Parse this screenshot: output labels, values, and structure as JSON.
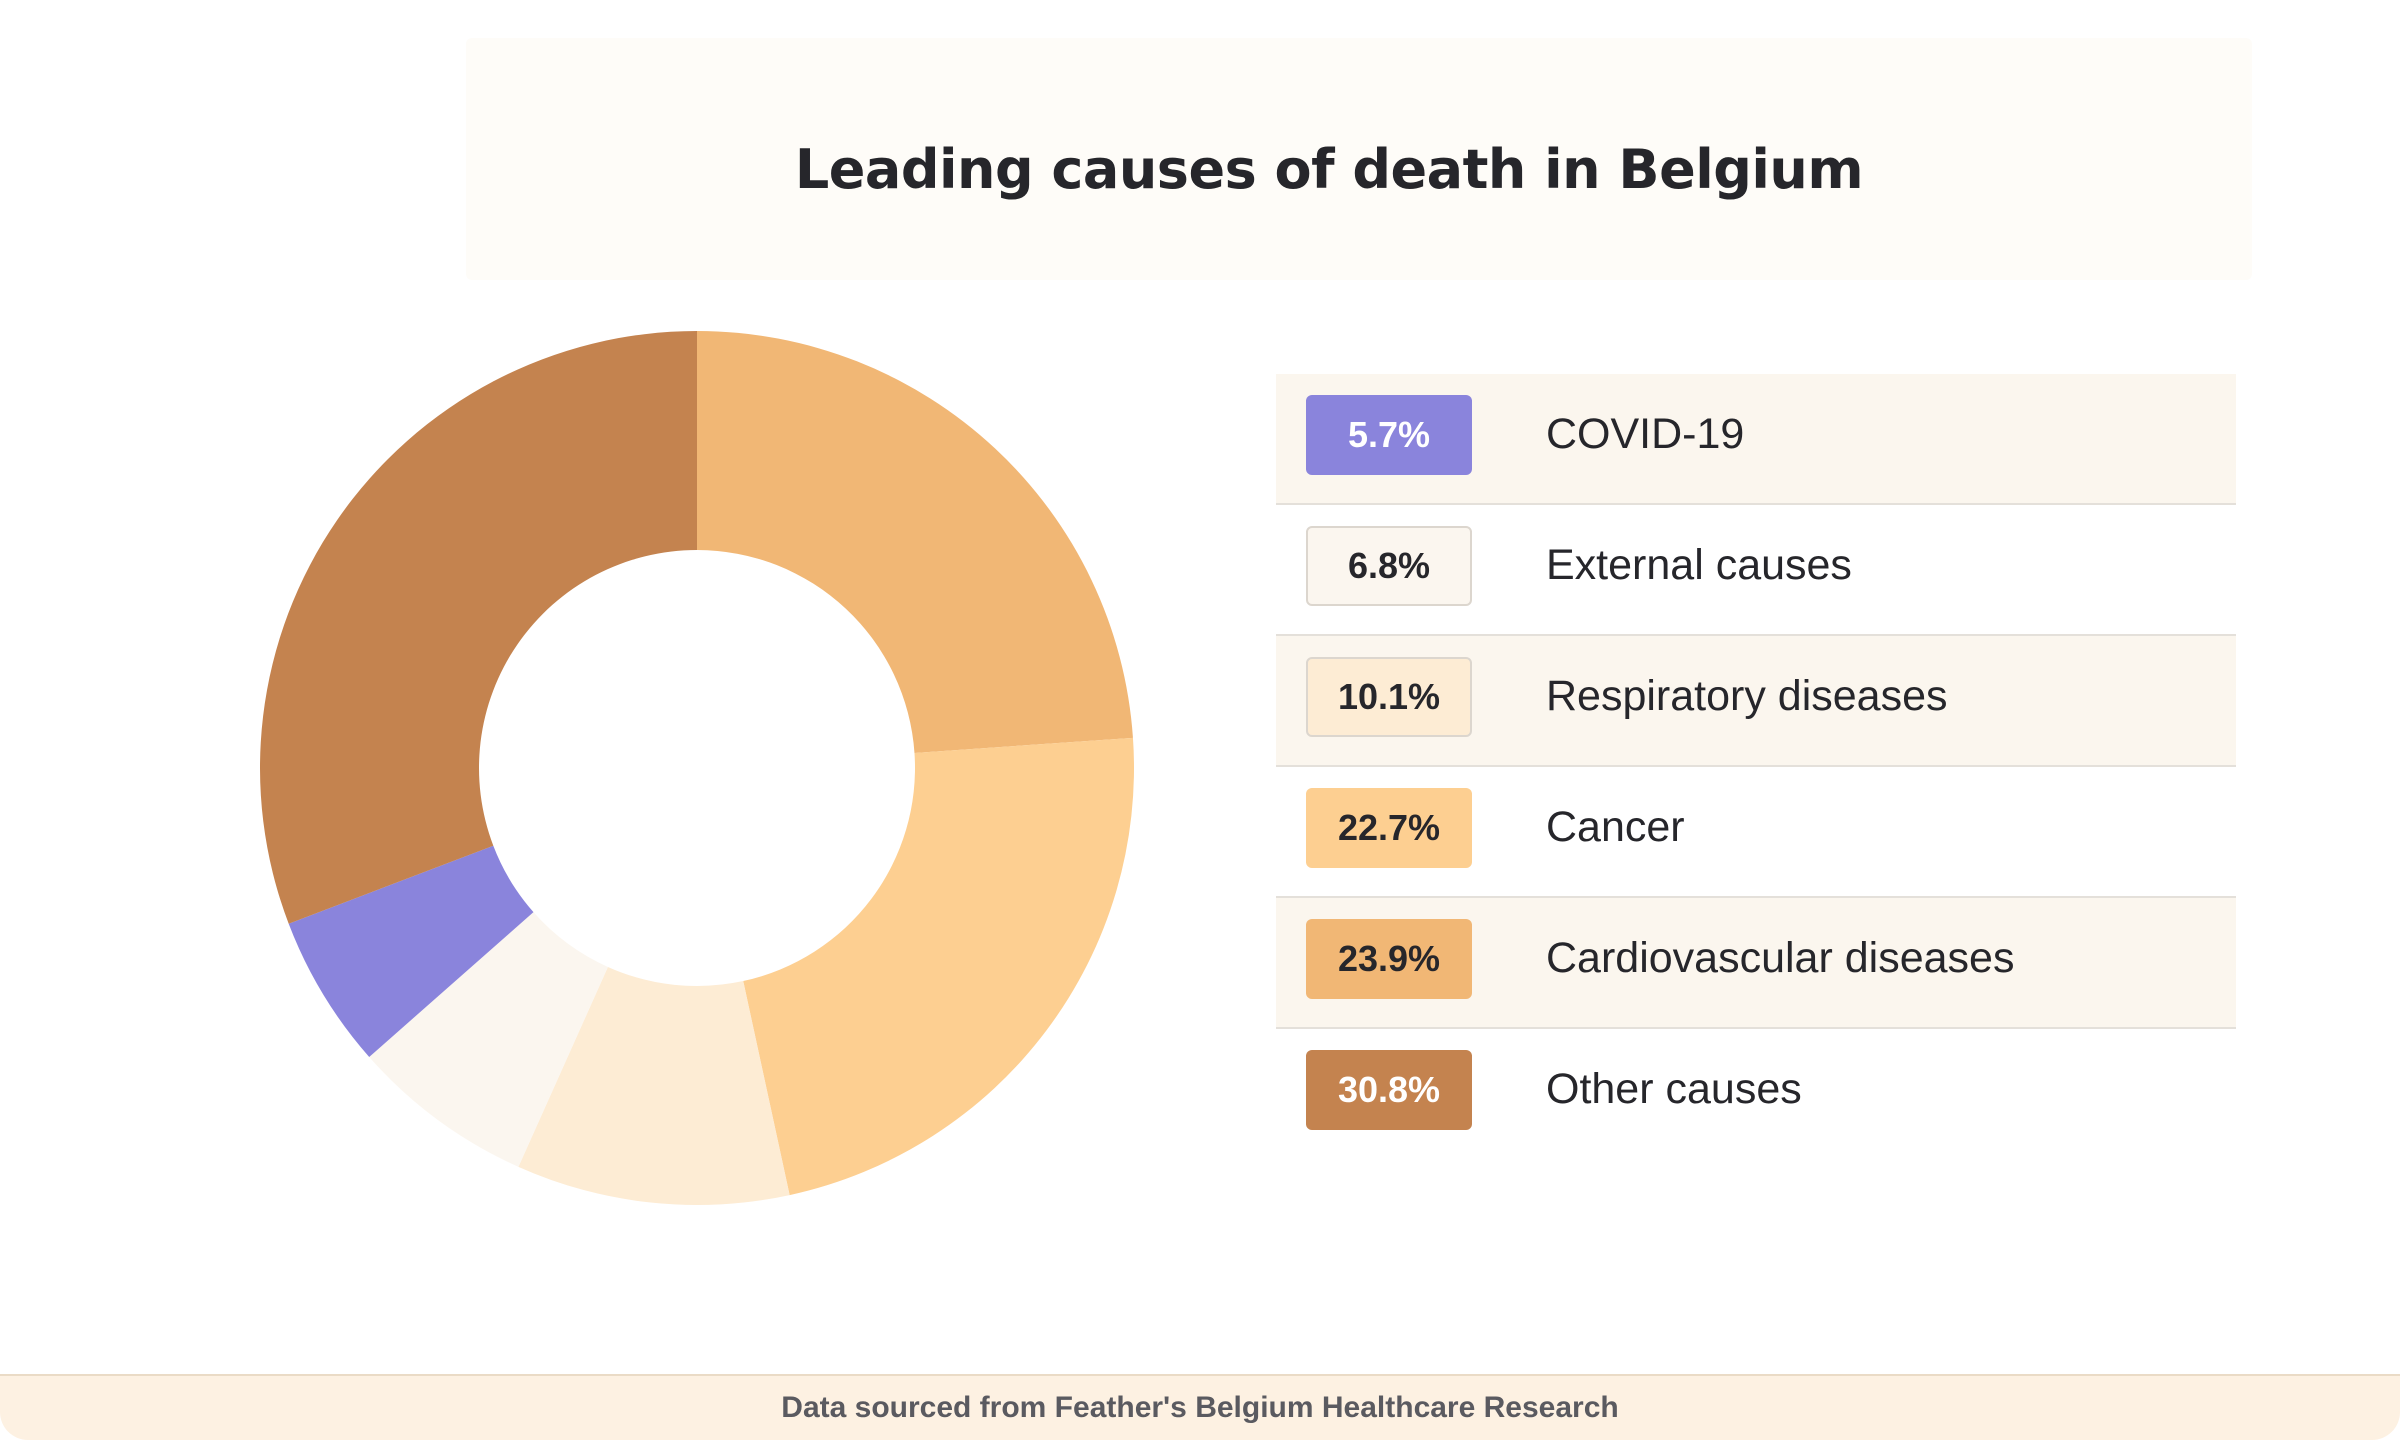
{
  "chart_data": {
    "type": "pie",
    "variant": "donut",
    "title": "Leading causes of death in Belgium",
    "start_angle_deg": -90,
    "slices": [
      {
        "label": "Cardiovascular diseases",
        "value": 23.9,
        "value_label": "23.9%",
        "color": "#f1b775",
        "text_color": "#26262b"
      },
      {
        "label": "Cancer",
        "value": 22.7,
        "value_label": "22.7%",
        "color": "#fdcf91",
        "text_color": "#26262b"
      },
      {
        "label": "Respiratory diseases",
        "value": 10.1,
        "value_label": "10.1%",
        "color": "#fdecd4",
        "text_color": "#26262b"
      },
      {
        "label": "External causes",
        "value": 6.8,
        "value_label": "6.8%",
        "color": "#fbf6ef",
        "text_color": "#26262b"
      },
      {
        "label": "COVID-19",
        "value": 5.7,
        "value_label": "5.7%",
        "color": "#8a84dc",
        "text_color": "#ffffff"
      },
      {
        "label": "Other causes",
        "value": 30.8,
        "value_label": "30.8%",
        "color": "#c4834f",
        "text_color": "#ffffff"
      }
    ],
    "legend_order": [
      "COVID-19",
      "External causes",
      "Respiratory diseases",
      "Cancer",
      "Cardiovascular diseases",
      "Other causes"
    ],
    "legend_placement": "right"
  },
  "footer": {
    "source": "Data sourced from Feather's Belgium Healthcare Research"
  }
}
